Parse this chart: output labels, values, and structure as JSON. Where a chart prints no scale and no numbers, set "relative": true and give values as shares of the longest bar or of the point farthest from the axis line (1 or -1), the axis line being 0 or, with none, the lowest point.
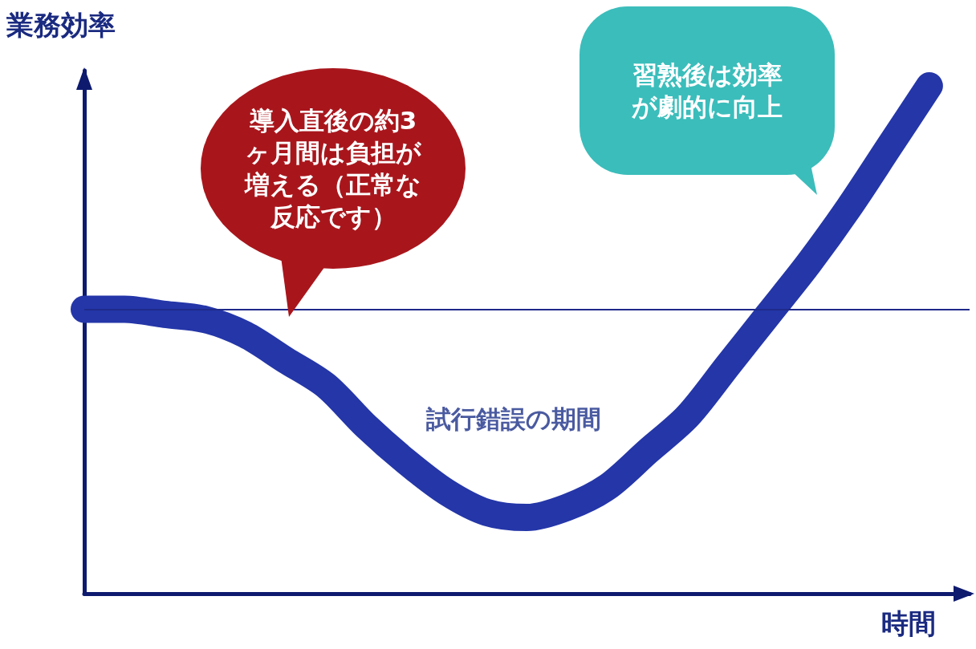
{
  "chart_data": {
    "type": "line",
    "relative": true,
    "xlabel": "時間",
    "ylabel": "業務効率",
    "categories": [
      null,
      null,
      null,
      null,
      null,
      null,
      null,
      null,
      null,
      null,
      null,
      null,
      null,
      null,
      null,
      null,
      null,
      null,
      null,
      null,
      null,
      null,
      null
    ],
    "series": [
      {
        "color": "#2436a8",
        "values": [
          0.56,
          0.56,
          0.55,
          0.54,
          0.51,
          0.46,
          0.41,
          0.33,
          0.26,
          0.2,
          0.16,
          0.15,
          0.17,
          0.21,
          0.28,
          0.35,
          0.45,
          0.55,
          0.65,
          0.76,
          0.88,
          1,
          null
        ]
      }
    ],
    "line_style": "solid",
    "ref_lines": [
      {
        "axis": "y",
        "value": 0.56,
        "color": "#1f2a8a"
      }
    ],
    "annotations": [
      "導入直後の約3ヶ月間は負担が増える（正常な反応です）",
      "習熟後は効率が劇的に向上",
      "試行錯誤の期間"
    ]
  }
}
